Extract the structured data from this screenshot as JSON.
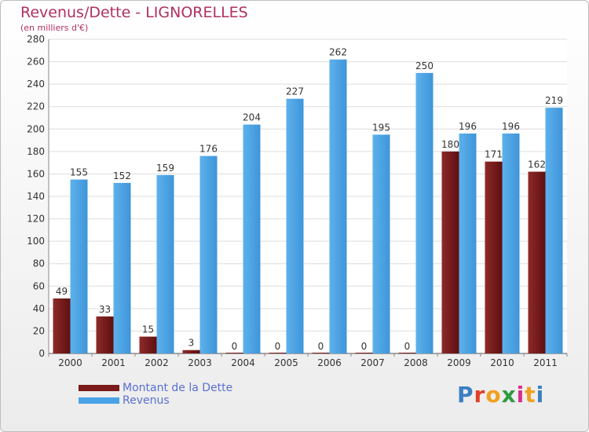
{
  "title": "Revenus/Dette - LIGNORELLES",
  "subtitle": "(en milliers d'€)",
  "logo_text": "Proxiti",
  "logo_colors": [
    "#3a7fc4",
    "#e0412a",
    "#f0a020",
    "#2e9a3e",
    "#d62f8a",
    "#f0a020",
    "#3a7fc4"
  ],
  "colors": {
    "dette": "#7a1a1a",
    "revenus": "#4aa3e6",
    "title": "#b03060",
    "legend_text": "#5b6fd1"
  },
  "chart_data": {
    "type": "bar",
    "title": "Revenus/Dette - LIGNORELLES",
    "subtitle": "(en milliers d'€)",
    "categories": [
      "2000",
      "2001",
      "2002",
      "2003",
      "2004",
      "2005",
      "2006",
      "2007",
      "2008",
      "2009",
      "2010",
      "2011"
    ],
    "series": [
      {
        "name": "Montant de la Dette",
        "values": [
          49,
          33,
          15,
          3,
          0,
          0,
          0,
          0,
          0,
          180,
          171,
          162
        ]
      },
      {
        "name": "Revenus",
        "values": [
          155,
          152,
          159,
          176,
          204,
          227,
          262,
          195,
          250,
          196,
          196,
          219
        ]
      }
    ],
    "yticks": [
      0,
      20,
      40,
      60,
      80,
      100,
      120,
      140,
      160,
      180,
      200,
      220,
      240,
      260,
      280
    ],
    "ylim": [
      0,
      280
    ],
    "grid": true,
    "legend_position": "bottom-left"
  }
}
